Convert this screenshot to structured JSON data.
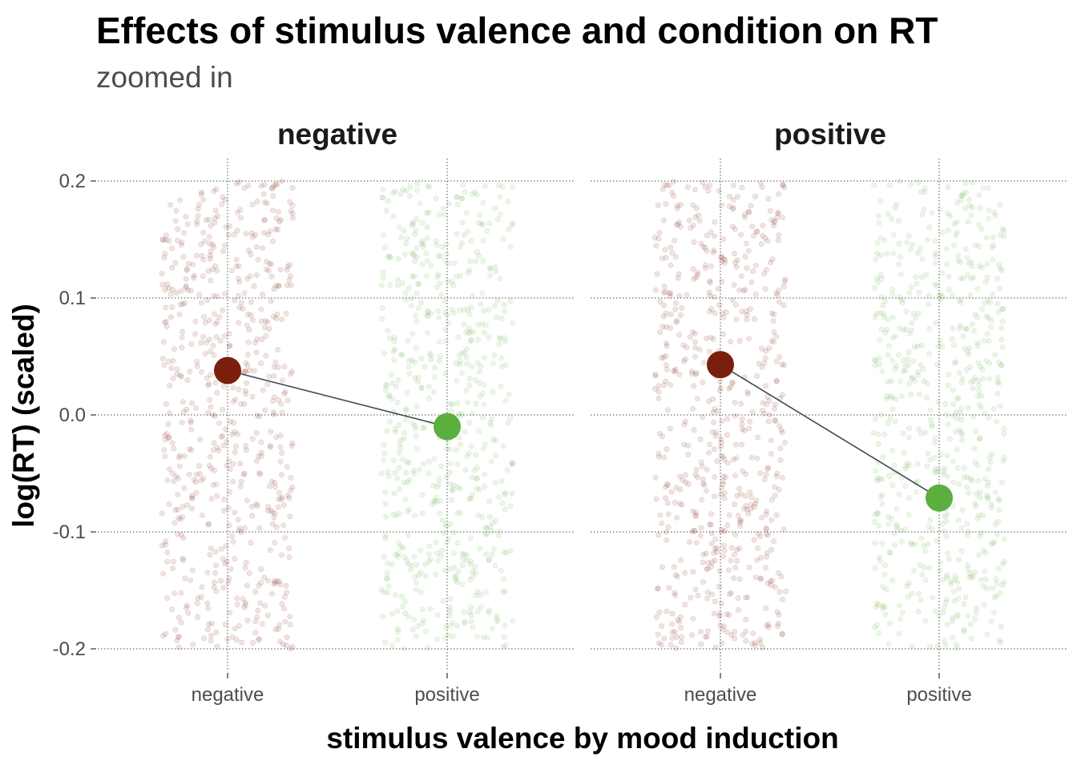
{
  "chart_data": {
    "type": "scatter",
    "title": "Effects of stimulus valence and condition on RT",
    "subtitle": "zoomed in",
    "xlabel": "stimulus valence by mood induction",
    "ylabel": "log(RT) (scaled)",
    "ylim": [
      -0.2,
      0.2
    ],
    "y_ticks": [
      0.2,
      0.1,
      0.0,
      -0.1,
      -0.2
    ],
    "y_tick_labels": [
      "0.2",
      "0.1",
      "0.0",
      "-0.1",
      "-0.2"
    ],
    "categories": [
      "negative",
      "positive"
    ],
    "grid": true,
    "colors": {
      "negative": "#7a1f0d",
      "positive": "#5aaf3f",
      "mean_line": "#3d4a55"
    },
    "facets": [
      {
        "label": "negative",
        "means": [
          {
            "category": "negative",
            "y": 0.038
          },
          {
            "category": "positive",
            "y": -0.01
          }
        ]
      },
      {
        "label": "positive",
        "means": [
          {
            "category": "negative",
            "y": 0.043
          },
          {
            "category": "positive",
            "y": -0.071
          }
        ]
      }
    ],
    "jitter_points": {
      "description_hidden": true,
      "count_per_group": 620,
      "alpha": 0.12
    }
  }
}
